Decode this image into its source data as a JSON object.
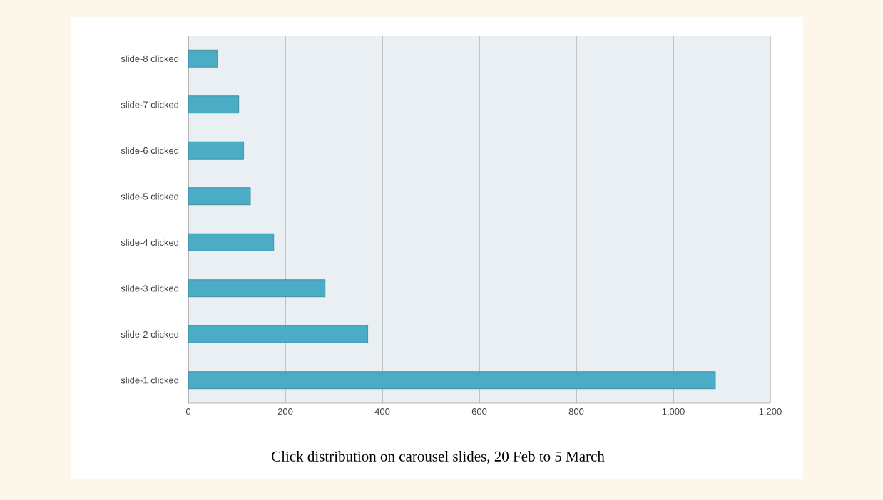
{
  "chart_data": {
    "type": "bar",
    "orientation": "horizontal",
    "title": "Click distribution on carousel slides, 20 Feb to 5 March",
    "categories": [
      "slide-8 clicked",
      "slide-7 clicked",
      "slide-6 clicked",
      "slide-5 clicked",
      "slide-4 clicked",
      "slide-3 clicked",
      "slide-2 clicked",
      "slide-1 clicked"
    ],
    "values": [
      60,
      104,
      114,
      128,
      176,
      282,
      370,
      1087
    ],
    "color": "#4bacc6",
    "xlim": [
      0,
      1200
    ],
    "xticks": [
      0,
      200,
      400,
      600,
      800,
      {
        "value": 1000,
        "label": "1,000"
      },
      {
        "value": 1200,
        "label": "1,200"
      }
    ],
    "grid": "x"
  }
}
